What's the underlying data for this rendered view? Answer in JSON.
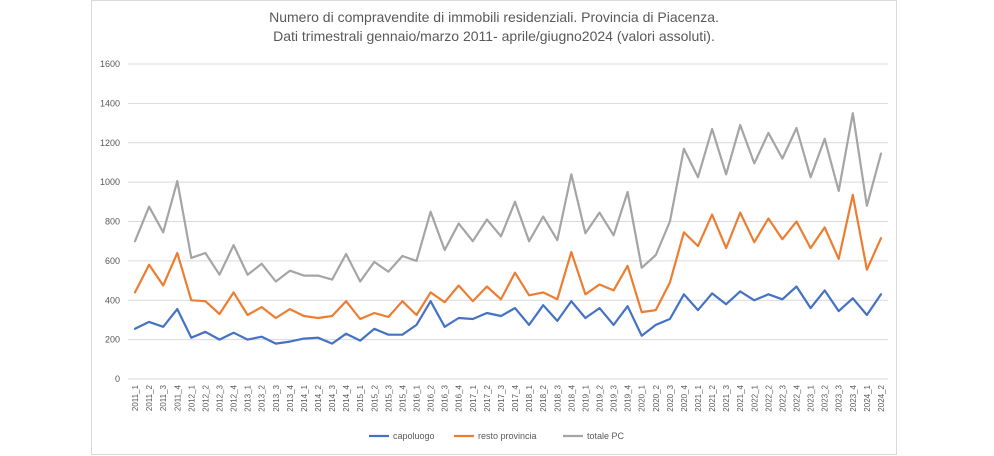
{
  "chart_data": {
    "type": "line",
    "title": "Numero di compravendite di immobili residenziali. Provincia di Piacenza.",
    "subtitle": "Dati trimestrali gennaio/marzo 2011- aprile/giugno2024 (valori assoluti).",
    "xlabel": "",
    "ylabel": "",
    "ylim": [
      0,
      1600
    ],
    "yticks": [
      "0",
      "200",
      "400",
      "600",
      "800",
      "1000",
      "1200",
      "1400",
      "1600"
    ],
    "grid": true,
    "legend_position": "bottom",
    "categories": [
      "2011_1",
      "2011_2",
      "2011_3",
      "2011_4",
      "2012_1",
      "2012_2",
      "2012_3",
      "2012_4",
      "2013_1",
      "2013_2",
      "2013_3",
      "2013_4",
      "2014_1",
      "2014_2",
      "2014_3",
      "2014_4",
      "2015_1",
      "2015_2",
      "2015_3",
      "2015_4",
      "2016_1",
      "2016_2",
      "2016_3",
      "2016_4",
      "2017_1",
      "2017_2",
      "2017_3",
      "2017_4",
      "2018_1",
      "2018_2",
      "2018_3",
      "2018_4",
      "2019_1",
      "2019_2",
      "2019_3",
      "2019_4",
      "2020_1",
      "2020_2",
      "2020_3",
      "2020_4",
      "2021_1",
      "2021_2",
      "2021_3",
      "2021_4",
      "2022_1",
      "2022_2",
      "2022_3",
      "2022_4",
      "2023_1",
      "2023_2",
      "2023_3",
      "2023_4",
      "2024_1",
      "2024_2"
    ],
    "series": [
      {
        "name": "capoluogo",
        "color": "#4472c4",
        "values": [
          255,
          290,
          265,
          355,
          210,
          240,
          200,
          235,
          200,
          215,
          180,
          190,
          205,
          210,
          180,
          230,
          195,
          255,
          225,
          225,
          275,
          395,
          265,
          310,
          305,
          335,
          320,
          360,
          275,
          375,
          295,
          395,
          310,
          360,
          275,
          370,
          220,
          275,
          305,
          430,
          350,
          435,
          380,
          445,
          400,
          430,
          405,
          470,
          360,
          450,
          345,
          410,
          325,
          430
        ]
      },
      {
        "name": "resto provincia",
        "color": "#ed7d31",
        "values": [
          440,
          580,
          475,
          640,
          400,
          395,
          330,
          440,
          325,
          365,
          310,
          355,
          320,
          310,
          320,
          395,
          305,
          335,
          315,
          395,
          325,
          440,
          390,
          475,
          395,
          470,
          405,
          540,
          425,
          440,
          405,
          645,
          430,
          480,
          450,
          575,
          340,
          350,
          490,
          745,
          675,
          835,
          665,
          845,
          695,
          815,
          710,
          800,
          665,
          770,
          610,
          935,
          555,
          715
        ]
      },
      {
        "name": "totale PC",
        "color": "#a5a5a5",
        "values": [
          700,
          875,
          745,
          1005,
          615,
          640,
          530,
          680,
          530,
          585,
          495,
          550,
          525,
          525,
          505,
          635,
          495,
          595,
          545,
          625,
          600,
          850,
          655,
          790,
          700,
          810,
          725,
          900,
          700,
          825,
          705,
          1040,
          740,
          845,
          730,
          950,
          565,
          630,
          800,
          1170,
          1025,
          1270,
          1040,
          1290,
          1095,
          1250,
          1120,
          1275,
          1025,
          1220,
          955,
          1350,
          880,
          1145
        ]
      }
    ]
  }
}
